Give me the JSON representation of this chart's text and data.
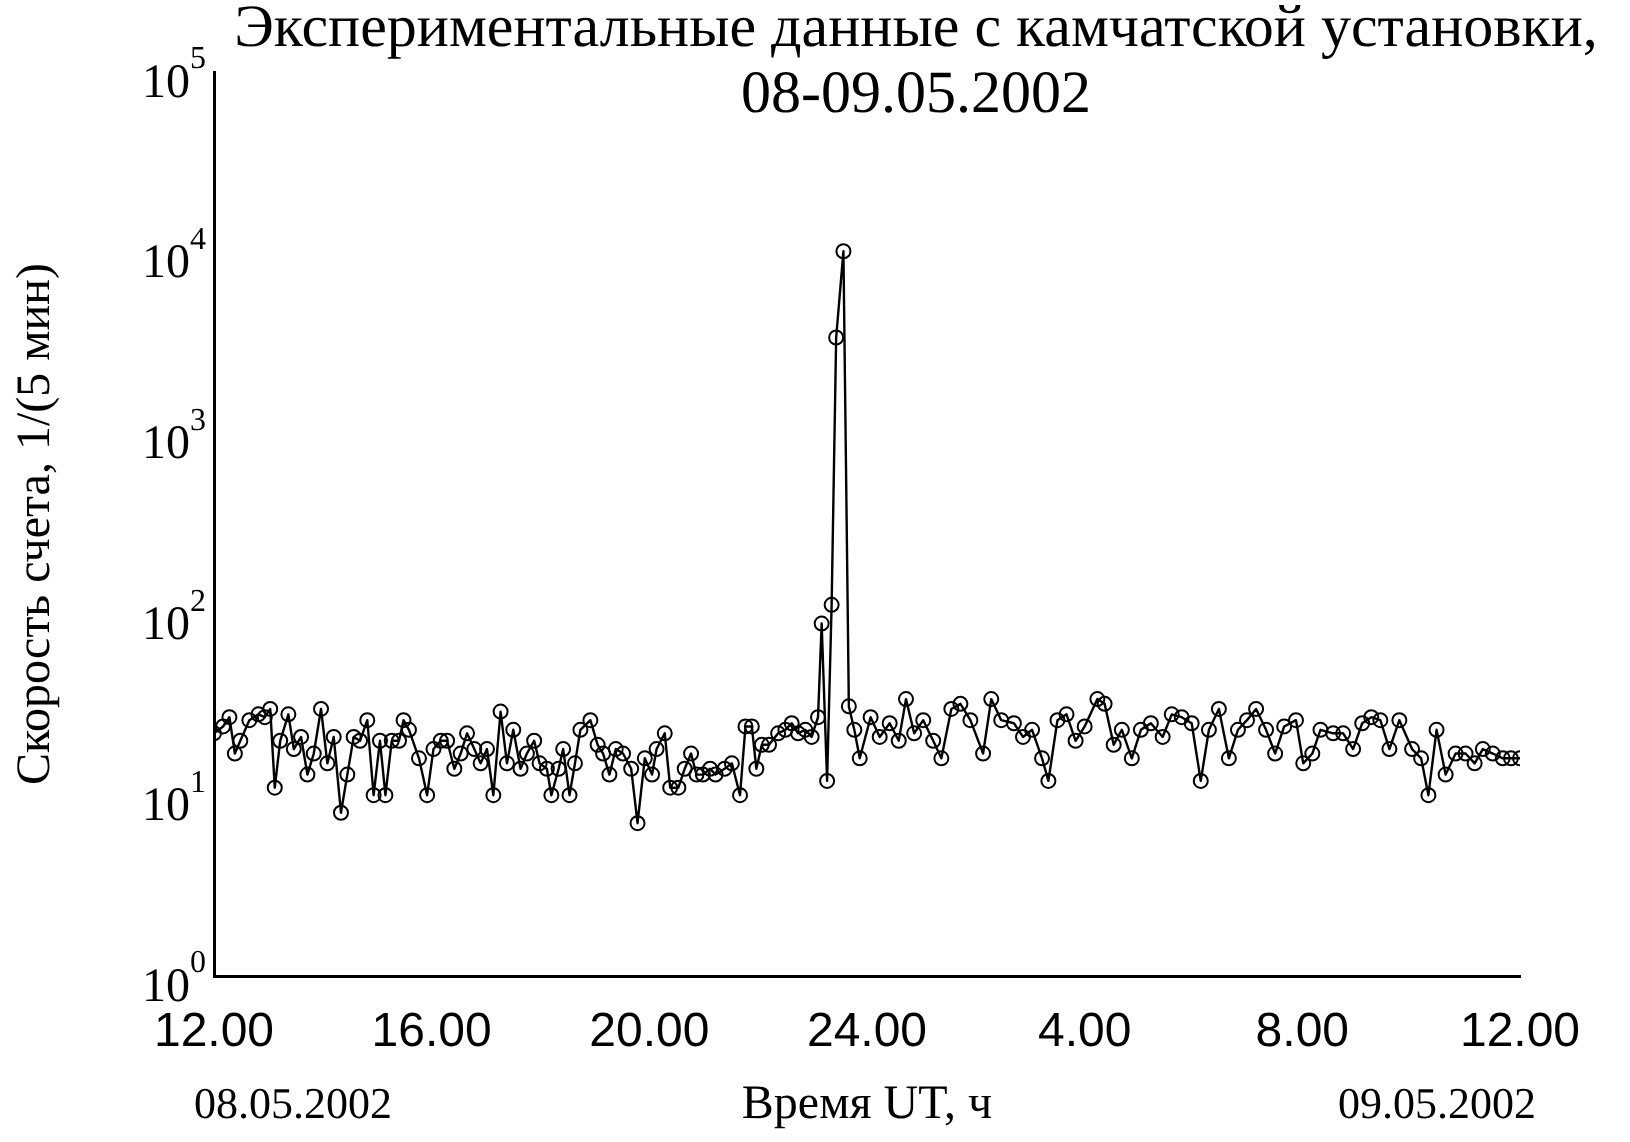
{
  "chart_data": {
    "type": "line",
    "title": "Экспериментальные данные с камчатской установки,\n08-09.05.2002",
    "xlabel": "Время UT, ч",
    "ylabel": "Скорость счета, 1/(5 мин)",
    "annotations": [
      "08.05.2002",
      "09.05.2002"
    ],
    "log": "y",
    "grid": false,
    "legend": false,
    "marker": "circle",
    "line_style": "solid",
    "xlim": [
      "2002-05-08T12:00",
      "2002-05-09T12:00"
    ],
    "xticks": [
      {
        "value": "2002-05-08T12:00",
        "label": "12.00"
      },
      {
        "value": "2002-05-08T16:00",
        "label": "16.00"
      },
      {
        "value": "2002-05-08T20:00",
        "label": "20.00"
      },
      {
        "value": "2002-05-09T00:00",
        "label": "24.00"
      },
      {
        "value": "2002-05-09T04:00",
        "label": "4.00"
      },
      {
        "value": "2002-05-09T08:00",
        "label": "8.00"
      },
      {
        "value": "2002-05-09T12:00",
        "label": "12.00"
      }
    ],
    "ylim": [
      1,
      100000
    ],
    "yticks": [
      {
        "value": 1,
        "label": "10$^{0}$"
      },
      {
        "value": 10,
        "label": "10$^{1}$"
      },
      {
        "value": 100,
        "label": "10$^{2}$"
      },
      {
        "value": 1000,
        "label": "10$^{3}$"
      },
      {
        "value": 10000,
        "label": "10$^{4}$"
      },
      {
        "value": 100000,
        "label": "10$^{5}$"
      }
    ],
    "x": [
      "2002-05-08T12:00",
      "2002-05-08T12:10",
      "2002-05-08T12:17",
      "2002-05-08T12:23",
      "2002-05-08T12:29",
      "2002-05-08T12:39",
      "2002-05-08T12:49",
      "2002-05-08T12:56",
      "2002-05-08T13:02",
      "2002-05-08T13:07",
      "2002-05-08T13:13",
      "2002-05-08T13:22",
      "2002-05-08T13:28",
      "2002-05-08T13:36",
      "2002-05-08T13:43",
      "2002-05-08T13:50",
      "2002-05-08T13:58",
      "2002-05-08T14:05",
      "2002-05-08T14:12",
      "2002-05-08T14:20",
      "2002-05-08T14:27",
      "2002-05-08T14:34",
      "2002-05-08T14:41",
      "2002-05-08T14:49",
      "2002-05-08T14:56",
      "2002-05-08T15:03",
      "2002-05-08T15:09",
      "2002-05-08T15:16",
      "2002-05-08T15:24",
      "2002-05-08T15:29",
      "2002-05-08T15:35",
      "2002-05-08T15:46",
      "2002-05-08T15:55",
      "2002-05-08T16:02",
      "2002-05-08T16:10",
      "2002-05-08T16:17",
      "2002-05-08T16:25",
      "2002-05-08T16:32",
      "2002-05-08T16:39",
      "2002-05-08T16:47",
      "2002-05-08T16:54",
      "2002-05-08T17:01",
      "2002-05-08T17:08",
      "2002-05-08T17:16",
      "2002-05-08T17:23",
      "2002-05-08T17:30",
      "2002-05-08T17:38",
      "2002-05-08T17:45",
      "2002-05-08T17:53",
      "2002-05-08T17:59",
      "2002-05-08T18:07",
      "2002-05-08T18:12",
      "2002-05-08T18:20",
      "2002-05-08T18:25",
      "2002-05-08T18:32",
      "2002-05-08T18:38",
      "2002-05-08T18:44",
      "2002-05-08T18:55",
      "2002-05-08T19:03",
      "2002-05-08T19:09",
      "2002-05-08T19:16",
      "2002-05-08T19:23",
      "2002-05-08T19:31",
      "2002-05-08T19:40",
      "2002-05-08T19:47",
      "2002-05-08T19:55",
      "2002-05-08T20:03",
      "2002-05-08T20:08",
      "2002-05-08T20:17",
      "2002-05-08T20:23",
      "2002-05-08T20:32",
      "2002-05-08T20:39",
      "2002-05-08T20:46",
      "2002-05-08T20:52",
      "2002-05-08T20:59",
      "2002-05-08T21:07",
      "2002-05-08T21:13",
      "2002-05-08T21:23",
      "2002-05-08T21:31",
      "2002-05-08T21:40",
      "2002-05-08T21:46",
      "2002-05-08T21:53",
      "2002-05-08T21:58",
      "2002-05-08T22:04",
      "2002-05-08T22:12",
      "2002-05-08T22:22",
      "2002-05-08T22:30",
      "2002-05-08T22:37",
      "2002-05-08T22:44",
      "2002-05-08T22:52",
      "2002-05-08T22:59",
      "2002-05-08T23:06",
      "2002-05-08T23:10",
      "2002-05-08T23:16",
      "2002-05-08T23:21",
      "2002-05-08T23:26",
      "2002-05-08T23:34",
      "2002-05-08T23:40",
      "2002-05-08T23:46",
      "2002-05-08T23:52",
      "2002-05-09T00:04",
      "2002-05-09T00:14",
      "2002-05-09T00:25",
      "2002-05-09T00:35",
      "2002-05-09T00:43",
      "2002-05-09T00:52",
      "2002-05-09T01:02",
      "2002-05-09T01:13",
      "2002-05-09T01:22",
      "2002-05-09T01:33",
      "2002-05-09T01:43",
      "2002-05-09T01:54",
      "2002-05-09T02:08",
      "2002-05-09T02:17",
      "2002-05-09T02:28",
      "2002-05-09T02:42",
      "2002-05-09T02:52",
      "2002-05-09T03:02",
      "2002-05-09T03:13",
      "2002-05-09T03:20",
      "2002-05-09T03:30",
      "2002-05-09T03:40",
      "2002-05-09T03:50",
      "2002-05-09T04:00",
      "2002-05-09T04:14",
      "2002-05-09T04:22",
      "2002-05-09T04:32",
      "2002-05-09T04:41",
      "2002-05-09T04:52",
      "2002-05-09T05:02",
      "2002-05-09T05:13",
      "2002-05-09T05:26",
      "2002-05-09T05:36",
      "2002-05-09T05:47",
      "2002-05-09T05:58",
      "2002-05-09T06:08",
      "2002-05-09T06:17",
      "2002-05-09T06:28",
      "2002-05-09T06:39",
      "2002-05-09T06:49",
      "2002-05-09T06:59",
      "2002-05-09T07:09",
      "2002-05-09T07:20",
      "2002-05-09T07:30",
      "2002-05-09T07:40",
      "2002-05-09T07:53",
      "2002-05-09T08:01",
      "2002-05-09T08:11",
      "2002-05-09T08:20",
      "2002-05-09T08:34",
      "2002-05-09T08:45",
      "2002-05-09T08:56",
      "2002-05-09T09:06",
      "2002-05-09T09:16",
      "2002-05-09T09:26",
      "2002-05-09T09:36",
      "2002-05-09T09:47",
      "2002-05-09T10:01",
      "2002-05-09T10:11",
      "2002-05-09T10:19",
      "2002-05-09T10:28",
      "2002-05-09T10:38",
      "2002-05-09T10:49",
      "2002-05-09T11:00",
      "2002-05-09T11:10",
      "2002-05-09T11:19",
      "2002-05-09T11:30",
      "2002-05-09T11:41",
      "2002-05-09T11:50",
      "2002-05-09T12:00"
    ],
    "series": [
      {
        "color": "#000000",
        "values": [
          22,
          24,
          27,
          17,
          20,
          26,
          28,
          27,
          30,
          11,
          20,
          28,
          18,
          21,
          13,
          17,
          30,
          15,
          21,
          8,
          13,
          21,
          20,
          26,
          10,
          20,
          10,
          20,
          20,
          26,
          23,
          16,
          10,
          18,
          20,
          20,
          14,
          17,
          22,
          18,
          15,
          18,
          10,
          29,
          15,
          23,
          14,
          17,
          20,
          15,
          14,
          10,
          14,
          18,
          10,
          15,
          23,
          26,
          19,
          17,
          13,
          18,
          17,
          14,
          7,
          16,
          13,
          18,
          22,
          11,
          11,
          14,
          17,
          13,
          13,
          14,
          13,
          14,
          15,
          10,
          24,
          24,
          14,
          19,
          19,
          22,
          23,
          25,
          22,
          23,
          21,
          27,
          89,
          12,
          113,
          3400,
          10200,
          31,
          23,
          16,
          27,
          21,
          25,
          20,
          34,
          22,
          26,
          20,
          16,
          30,
          32,
          26,
          17,
          34,
          26,
          25,
          21,
          23,
          16,
          12,
          26,
          28,
          20,
          24,
          34,
          32,
          19,
          23,
          16,
          23,
          25,
          21,
          28,
          27,
          25,
          12,
          23,
          30,
          16,
          23,
          26,
          30,
          23,
          17,
          24,
          26,
          15,
          17,
          23,
          22,
          22,
          18,
          25,
          27,
          26,
          18,
          26,
          18,
          16,
          10,
          23,
          13,
          17,
          17,
          15,
          18,
          17,
          16,
          16,
          16
        ]
      }
    ]
  }
}
